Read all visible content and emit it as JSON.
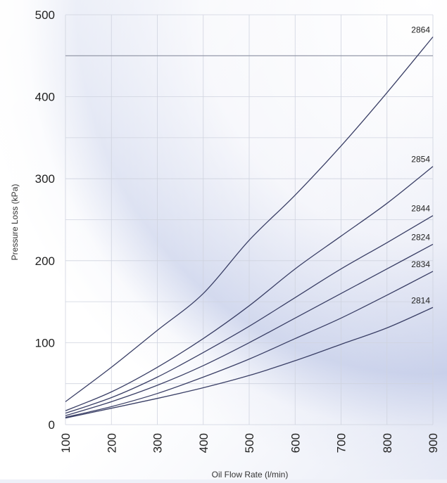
{
  "chart_data": {
    "type": "line",
    "title": "",
    "xlabel": "Oil Flow Rate (l/min)",
    "ylabel": "Pressure Loss (kPa)",
    "xlim": [
      100,
      900
    ],
    "ylim": [
      0,
      500
    ],
    "x_ticks": [
      "100",
      "200",
      "300",
      "400",
      "500",
      "600",
      "700",
      "800",
      "900"
    ],
    "y_ticks": [
      "0",
      "100",
      "200",
      "300",
      "400",
      "500"
    ],
    "grid": true,
    "reference_line_y": 450,
    "x": [
      100,
      200,
      300,
      400,
      500,
      600,
      700,
      800,
      900
    ],
    "series": [
      {
        "name": "2864",
        "values": [
          28,
          70,
          115,
          160,
          225,
          280,
          340,
          405,
          473
        ]
      },
      {
        "name": "2854",
        "values": [
          17,
          40,
          70,
          105,
          145,
          190,
          230,
          270,
          315
        ]
      },
      {
        "name": "2844",
        "values": [
          14,
          33,
          58,
          88,
          120,
          155,
          190,
          222,
          255
        ]
      },
      {
        "name": "2824",
        "values": [
          11,
          28,
          48,
          72,
          100,
          130,
          160,
          190,
          220
        ]
      },
      {
        "name": "2834",
        "values": [
          9,
          22,
          38,
          58,
          80,
          105,
          130,
          158,
          187
        ]
      },
      {
        "name": "2814",
        "values": [
          8,
          20,
          32,
          45,
          60,
          78,
          98,
          118,
          143
        ]
      }
    ]
  }
}
